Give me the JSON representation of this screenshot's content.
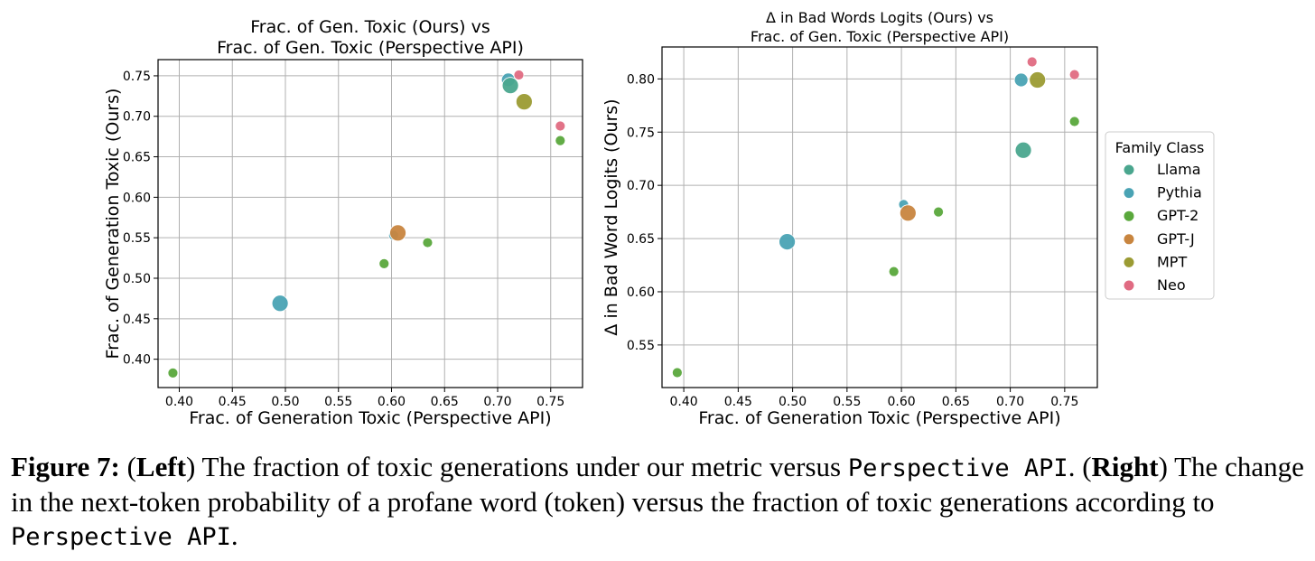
{
  "caption": {
    "label": "Figure 7:",
    "paren_left_open": " (",
    "left_word": "Left",
    "left_text": ") The fraction of toxic generations under our metric versus ",
    "api1": "Perspective API",
    "mid_text": ". (",
    "right_word": "Right",
    "right_text": ") The change in the next-token probability of a profane word (token) versus the fraction of toxic generations according to ",
    "api2": "Perspective API",
    "end": "."
  },
  "legend": {
    "title": "Family Class",
    "items": [
      {
        "name": "Llama",
        "color": "#4aa68e"
      },
      {
        "name": "Pythia",
        "color": "#4aa3b4"
      },
      {
        "name": "GPT-2",
        "color": "#5aa83c"
      },
      {
        "name": "GPT-J",
        "color": "#c8853f"
      },
      {
        "name": "MPT",
        "color": "#9b9b33"
      },
      {
        "name": "Neo",
        "color": "#e06b82"
      }
    ]
  },
  "chart_data": [
    {
      "type": "scatter",
      "title": "Frac. of Gen. Toxic (Ours) vs\nFrac. of Gen. Toxic (Perspective API)",
      "xlabel": "Frac. of Generation Toxic (Perspective API)",
      "ylabel": "Frac. of Generation Toxic (Ours)",
      "xlim": [
        0.38,
        0.78
      ],
      "ylim": [
        0.365,
        0.77
      ],
      "xticks": [
        "0.40",
        "0.45",
        "0.50",
        "0.55",
        "0.60",
        "0.65",
        "0.70",
        "0.75"
      ],
      "yticks": [
        "0.40",
        "0.45",
        "0.50",
        "0.55",
        "0.60",
        "0.65",
        "0.70",
        "0.75"
      ],
      "grid": true,
      "points": [
        {
          "family": "GPT-2",
          "x": 0.394,
          "y": 0.383,
          "size": "small"
        },
        {
          "family": "Pythia",
          "x": 0.495,
          "y": 0.469,
          "size": "large"
        },
        {
          "family": "GPT-2",
          "x": 0.593,
          "y": 0.518,
          "size": "small"
        },
        {
          "family": "Pythia",
          "x": 0.602,
          "y": 0.553,
          "size": "small"
        },
        {
          "family": "GPT-J",
          "x": 0.606,
          "y": 0.556,
          "size": "large"
        },
        {
          "family": "GPT-2",
          "x": 0.634,
          "y": 0.544,
          "size": "small"
        },
        {
          "family": "Pythia",
          "x": 0.71,
          "y": 0.745,
          "size": "medium"
        },
        {
          "family": "Llama",
          "x": 0.712,
          "y": 0.738,
          "size": "large"
        },
        {
          "family": "Neo",
          "x": 0.72,
          "y": 0.751,
          "size": "small"
        },
        {
          "family": "MPT",
          "x": 0.725,
          "y": 0.718,
          "size": "large"
        },
        {
          "family": "Neo",
          "x": 0.759,
          "y": 0.688,
          "size": "small"
        },
        {
          "family": "GPT-2",
          "x": 0.759,
          "y": 0.67,
          "size": "small"
        }
      ]
    },
    {
      "type": "scatter",
      "title": "Δ in Bad Words Logits (Ours) vs\nFrac. of Gen. Toxic (Perspective API)",
      "xlabel": "Frac. of Generation Toxic (Perspective API)",
      "ylabel": "Δ in Bad Word Logits (Ours)",
      "xlim": [
        0.38,
        0.78
      ],
      "ylim": [
        0.51,
        0.83
      ],
      "xticks": [
        "0.40",
        "0.45",
        "0.50",
        "0.55",
        "0.60",
        "0.65",
        "0.70",
        "0.75"
      ],
      "yticks": [
        "0.55",
        "0.60",
        "0.65",
        "0.70",
        "0.75",
        "0.80"
      ],
      "grid": true,
      "legend_position": "outside-right",
      "points": [
        {
          "family": "GPT-2",
          "x": 0.394,
          "y": 0.524,
          "size": "small"
        },
        {
          "family": "Pythia",
          "x": 0.495,
          "y": 0.647,
          "size": "large"
        },
        {
          "family": "GPT-2",
          "x": 0.593,
          "y": 0.619,
          "size": "small"
        },
        {
          "family": "Pythia",
          "x": 0.602,
          "y": 0.682,
          "size": "small"
        },
        {
          "family": "GPT-J",
          "x": 0.606,
          "y": 0.674,
          "size": "large"
        },
        {
          "family": "GPT-2",
          "x": 0.634,
          "y": 0.675,
          "size": "small"
        },
        {
          "family": "Pythia",
          "x": 0.71,
          "y": 0.799,
          "size": "medium"
        },
        {
          "family": "Llama",
          "x": 0.712,
          "y": 0.733,
          "size": "large"
        },
        {
          "family": "Neo",
          "x": 0.72,
          "y": 0.816,
          "size": "small"
        },
        {
          "family": "MPT",
          "x": 0.725,
          "y": 0.799,
          "size": "large"
        },
        {
          "family": "Neo",
          "x": 0.759,
          "y": 0.804,
          "size": "small"
        },
        {
          "family": "GPT-2",
          "x": 0.759,
          "y": 0.76,
          "size": "small"
        }
      ]
    }
  ]
}
